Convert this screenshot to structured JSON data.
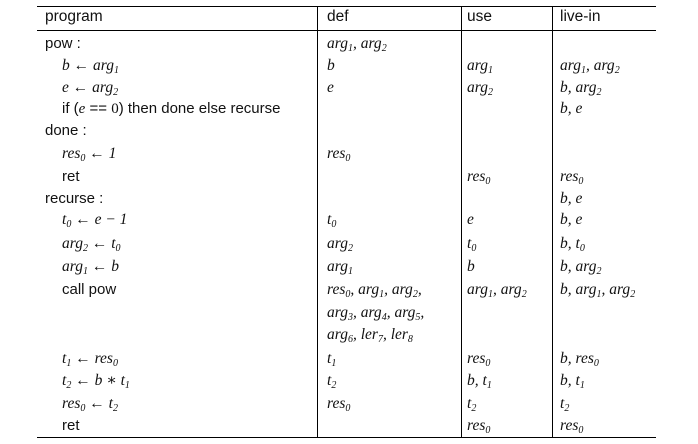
{
  "table": {
    "headers": [
      "program",
      "def",
      "use",
      "live-in"
    ],
    "rows": [
      {
        "program": "pow :",
        "def": "arg₁, arg₂",
        "use": "",
        "live_in": ""
      },
      {
        "program": "b ← arg₁",
        "def": "b",
        "use": "arg₁",
        "live_in": "arg₁, arg₂"
      },
      {
        "program": "e ← arg₂",
        "def": "e",
        "use": "arg₂",
        "live_in": "b, arg₂"
      },
      {
        "program": "if (e == 0) then done else recurse",
        "def": "",
        "use": "",
        "live_in": "b, e"
      },
      {
        "program": "done :",
        "def": "",
        "use": "",
        "live_in": ""
      },
      {
        "program": "res₀ ← 1",
        "def": "res₀",
        "use": "",
        "live_in": ""
      },
      {
        "program": "ret",
        "def": "",
        "use": "res₀",
        "live_in": "res₀"
      },
      {
        "program": "recurse :",
        "def": "",
        "use": "",
        "live_in": "b, e"
      },
      {
        "program": "t₀ ← e − 1",
        "def": "t₀",
        "use": "e",
        "live_in": "b, e"
      },
      {
        "program": "arg₂ ← t₀",
        "def": "arg₂",
        "use": "t₀",
        "live_in": "b, t₀"
      },
      {
        "program": "arg₁ ← b",
        "def": "arg₁",
        "use": "b",
        "live_in": "b, arg₂"
      },
      {
        "program": "call pow",
        "def": "res₀, arg₁, arg₂,",
        "use": "arg₁, arg₂",
        "live_in": "b, arg₁, arg₂"
      },
      {
        "program": "",
        "def": "arg₃, arg₄, arg₅,",
        "use": "",
        "live_in": ""
      },
      {
        "program": "",
        "def": "arg₆, ler₇, ler₈",
        "use": "",
        "live_in": ""
      },
      {
        "program": "t₁ ← res₀",
        "def": "t₁",
        "use": "res₀",
        "live_in": "b, res₀"
      },
      {
        "program": "t₂ ← b ∗ t₁",
        "def": "t₂",
        "use": "b, t₁",
        "live_in": "b, t₁"
      },
      {
        "program": "res₀ ← t₂",
        "def": "res₀",
        "use": "t₂",
        "live_in": "t₂"
      },
      {
        "program": "ret",
        "def": "",
        "use": "res₀",
        "live_in": "res₀"
      }
    ]
  }
}
